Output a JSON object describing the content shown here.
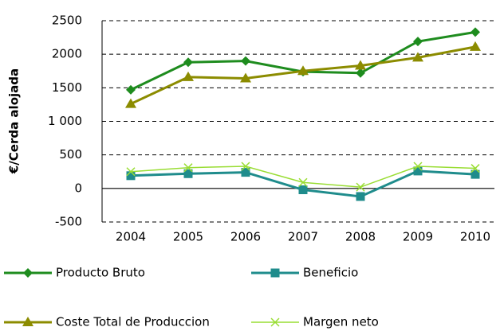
{
  "chart_data": {
    "type": "line",
    "y_label": "€/Cerda alojada",
    "categories": [
      "2004",
      "2005",
      "2006",
      "2007",
      "2008",
      "2009",
      "2010"
    ],
    "series": [
      {
        "name": "Producto Bruto",
        "color": "#1e8c1e",
        "marker": "diamond",
        "values": [
          1470,
          1880,
          1900,
          1740,
          1720,
          2190,
          2330
        ]
      },
      {
        "name": "Beneficio",
        "color": "#1f8c8c",
        "marker": "square",
        "values": [
          190,
          220,
          240,
          -20,
          -120,
          260,
          210
        ]
      },
      {
        "name": "Coste Total de Produccion",
        "color": "#8c8c00",
        "marker": "triangle",
        "values": [
          1260,
          1660,
          1640,
          1750,
          1830,
          1950,
          2110
        ]
      },
      {
        "name": "Margen neto",
        "color": "#99dd33",
        "marker": "x",
        "values": [
          250,
          310,
          330,
          90,
          20,
          330,
          300
        ]
      }
    ],
    "ylim": [
      -500,
      2500
    ],
    "yticks": [
      -500,
      0,
      500,
      {
        "value": 1000,
        "label": "1 000"
      },
      1500,
      2000,
      2500
    ],
    "grid": true
  }
}
